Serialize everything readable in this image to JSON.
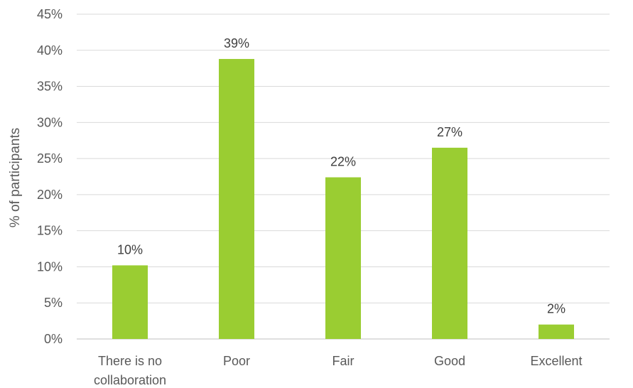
{
  "chart_data": {
    "type": "bar",
    "title": "",
    "xlabel": "",
    "ylabel": "% of participants",
    "categories": [
      "There is no collaboration",
      "Poor",
      "Fair",
      "Good",
      "Excellent"
    ],
    "category_lines": [
      [
        "There is no",
        "collaboration"
      ],
      [
        "Poor"
      ],
      [
        "Fair"
      ],
      [
        "Good"
      ],
      [
        "Excellent"
      ]
    ],
    "values": [
      10.2,
      38.8,
      22.4,
      26.5,
      2.0
    ],
    "data_labels": [
      "10%",
      "39%",
      "22%",
      "27%",
      "2%"
    ],
    "ylim": [
      0,
      45
    ],
    "yticks": [
      0,
      5,
      10,
      15,
      20,
      25,
      30,
      35,
      40,
      45
    ],
    "ytick_labels": [
      "0%",
      "5%",
      "10%",
      "15%",
      "20%",
      "25%",
      "30%",
      "35%",
      "40%",
      "45%"
    ],
    "grid": true,
    "bar_color": "#9acd32"
  }
}
